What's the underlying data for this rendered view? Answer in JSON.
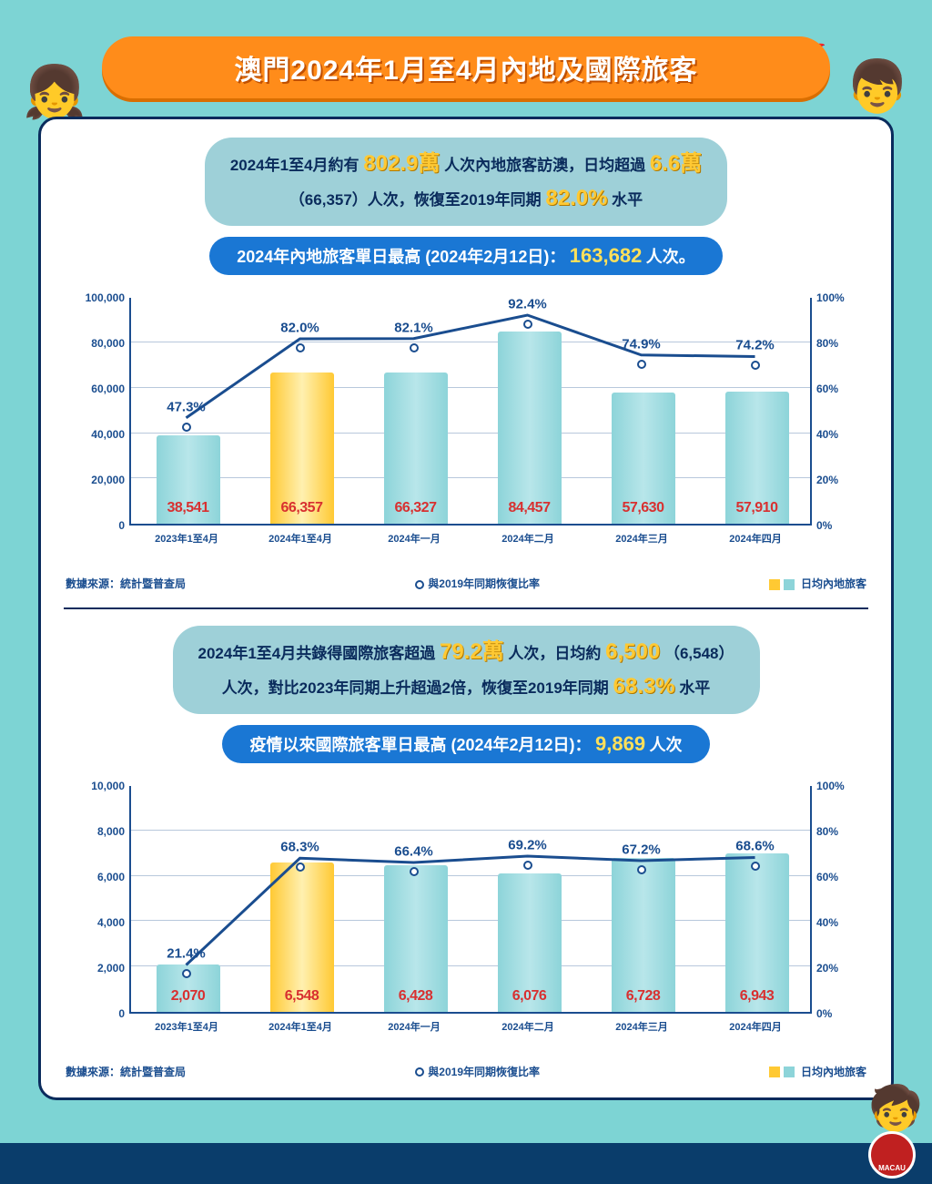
{
  "header": {
    "title": "澳門2024年1月至4月內地及國際旅客"
  },
  "section1": {
    "info_l1a": "2024年1至4月約有",
    "info_hl1": "802.9萬",
    "info_l1b": "人次內地旅客訪澳，日均超過",
    "info_hl2": "6.6萬",
    "info_l2a": "（66,357）人次，恢復至2019年同期",
    "info_hl3": "82.0%",
    "info_l2b": "水平",
    "sub_a": "2024年內地旅客單日最高 (2024年2月12日)：",
    "sub_hl": "163,682",
    "sub_b": "人次。"
  },
  "chart1": {
    "y_left_max": 100000,
    "y_left_step": 20000,
    "y_right_max": 100,
    "y_right_step": 20,
    "categories": [
      "2023年1至4月",
      "2024年1至4月",
      "2024年一月",
      "2024年二月",
      "2024年三月",
      "2024年四月"
    ],
    "bar_values": [
      38541,
      66357,
      66327,
      84457,
      57630,
      57910
    ],
    "bar_labels": [
      "38,541",
      "66,357",
      "66,327",
      "84,457",
      "57,630",
      "57,910"
    ],
    "bar_colors": [
      "teal",
      "yellow",
      "teal",
      "teal",
      "teal",
      "teal"
    ],
    "line_pct": [
      47.3,
      82.0,
      82.1,
      92.4,
      74.9,
      74.2
    ],
    "line_labels": [
      "47.3%",
      "82.0%",
      "82.1%",
      "92.4%",
      "74.9%",
      "74.2%"
    ]
  },
  "source1": {
    "left": "數據來源：統計暨普查局",
    "mid_legend": "與2019年同期恢復比率",
    "right_legend": "日均內地旅客"
  },
  "section2": {
    "info_l1a": "2024年1至4月共錄得國際旅客超過",
    "info_hl1": "79.2萬",
    "info_l1b": "人次，日均約",
    "info_hl2": "6,500",
    "info_l1c": "（6,548）",
    "info_l2a": "人次，對比2023年同期上升超過2倍，恢復至2019年同期",
    "info_hl3": "68.3%",
    "info_l2b": "水平",
    "sub_a": "疫情以來國際旅客單日最高 (2024年2月12日)：",
    "sub_hl": "9,869",
    "sub_b": "人次"
  },
  "chart2": {
    "y_left_max": 10000,
    "y_left_step": 2000,
    "y_right_max": 100,
    "y_right_step": 20,
    "categories": [
      "2023年1至4月",
      "2024年1至4月",
      "2024年一月",
      "2024年二月",
      "2024年三月",
      "2024年四月"
    ],
    "bar_values": [
      2070,
      6548,
      6428,
      6076,
      6728,
      6943
    ],
    "bar_labels": [
      "2,070",
      "6,548",
      "6,428",
      "6,076",
      "6,728",
      "6,943"
    ],
    "bar_colors": [
      "teal",
      "yellow",
      "teal",
      "teal",
      "teal",
      "teal"
    ],
    "line_pct": [
      21.4,
      68.3,
      66.4,
      69.2,
      67.2,
      68.6
    ],
    "line_labels": [
      "21.4%",
      "68.3%",
      "66.4%",
      "69.2%",
      "67.2%",
      "68.6%"
    ]
  },
  "source2": {
    "left": "數據來源：統計暨普查局",
    "mid_legend": "與2019年同期恢復比率",
    "right_legend": "日均內地旅客"
  },
  "logo": "MACAU",
  "y_left_ticks1": [
    "0",
    "20,000",
    "40,000",
    "60,000",
    "80,000",
    "100,000"
  ],
  "y_left_ticks2": [
    "0",
    "2,000",
    "4,000",
    "6,000",
    "8,000",
    "10,000"
  ],
  "y_right_ticks": [
    "0%",
    "20%",
    "40%",
    "60%",
    "80%",
    "100%"
  ],
  "styling": {
    "bg_color": "#7dd4d4",
    "banner_bg": "#ff8c1a",
    "card_border": "#0a2b5c",
    "pill_bg": "#9ed0d8",
    "subpill_bg": "#1a77d4",
    "axis_color": "#1a4d8f",
    "grid_color": "#b8c8dc",
    "bar_teal": "#8dd4d9",
    "bar_yellow": "#ffc933",
    "line_color": "#1a4d8f",
    "value_color": "#d83030",
    "highlight_num_color": "#ffc933"
  }
}
